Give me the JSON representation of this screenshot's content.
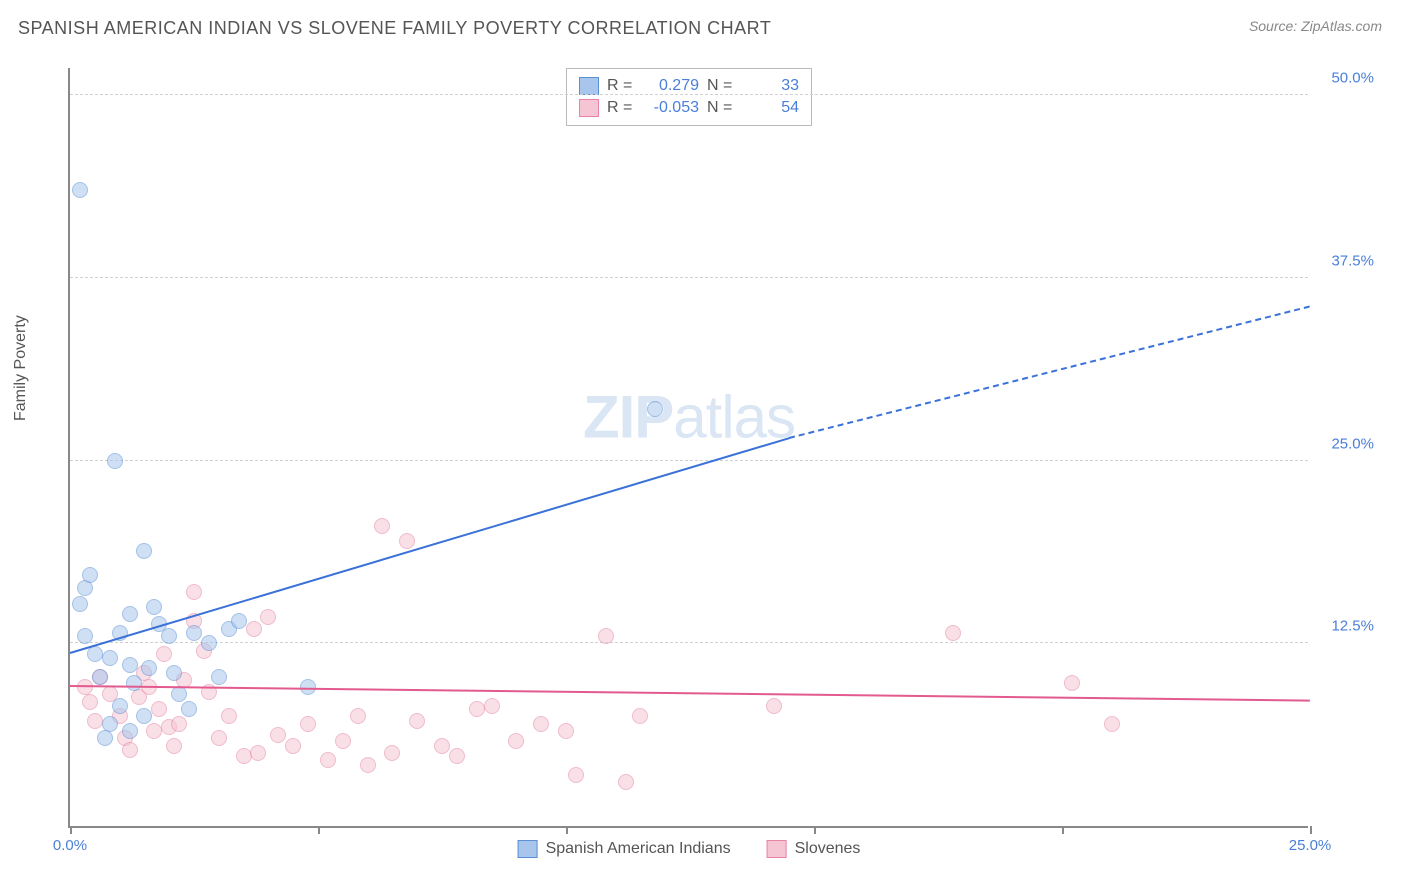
{
  "title": "SPANISH AMERICAN INDIAN VS SLOVENE FAMILY POVERTY CORRELATION CHART",
  "source": "Source: ZipAtlas.com",
  "ylabel": "Family Poverty",
  "watermark_bold": "ZIP",
  "watermark_light": "atlas",
  "chart": {
    "type": "scatter",
    "xlim": [
      0,
      25
    ],
    "ylim": [
      0,
      52
    ],
    "x_ticks": [
      0,
      5,
      10,
      15,
      20,
      25
    ],
    "x_tick_labels": {
      "0": "0.0%",
      "25": "25.0%"
    },
    "y_gridlines": [
      12.5,
      25.0,
      37.5,
      50.0
    ],
    "y_tick_labels": [
      "12.5%",
      "25.0%",
      "37.5%",
      "50.0%"
    ],
    "grid_color": "#d0d0d0",
    "axis_color": "#888888",
    "marker_radius": 8,
    "marker_opacity": 0.55,
    "series": [
      {
        "name": "Spanish American Indians",
        "color_fill": "#a8c6ec",
        "color_stroke": "#5b8fd6",
        "R": "0.279",
        "N": "33",
        "points": [
          [
            0.2,
            43.5
          ],
          [
            0.9,
            25.0
          ],
          [
            0.3,
            16.3
          ],
          [
            0.4,
            17.2
          ],
          [
            0.2,
            15.2
          ],
          [
            0.5,
            11.8
          ],
          [
            0.6,
            10.2
          ],
          [
            0.8,
            11.5
          ],
          [
            1.0,
            13.2
          ],
          [
            1.2,
            14.5
          ],
          [
            1.5,
            18.8
          ],
          [
            1.7,
            15.0
          ],
          [
            1.2,
            11.0
          ],
          [
            1.3,
            9.8
          ],
          [
            1.5,
            7.5
          ],
          [
            1.0,
            8.2
          ],
          [
            0.8,
            7.0
          ],
          [
            0.7,
            6.0
          ],
          [
            1.2,
            6.5
          ],
          [
            1.6,
            10.8
          ],
          [
            1.8,
            13.8
          ],
          [
            2.0,
            13.0
          ],
          [
            2.1,
            10.5
          ],
          [
            2.2,
            9.0
          ],
          [
            2.4,
            8.0
          ],
          [
            2.5,
            13.2
          ],
          [
            2.8,
            12.5
          ],
          [
            3.0,
            10.2
          ],
          [
            3.2,
            13.5
          ],
          [
            3.4,
            14.0
          ],
          [
            4.8,
            9.5
          ],
          [
            11.8,
            28.5
          ],
          [
            0.3,
            13.0
          ]
        ],
        "trend": {
          "x1": 0,
          "y1": 11.8,
          "x2_solid": 14.5,
          "y2_solid": 26.5,
          "x2_dash": 25,
          "y2_dash": 35.5,
          "color": "#3a72d8"
        }
      },
      {
        "name": "Slovenes",
        "color_fill": "#f5c5d3",
        "color_stroke": "#e584a5",
        "R": "-0.053",
        "N": "54",
        "points": [
          [
            0.3,
            9.5
          ],
          [
            0.4,
            8.5
          ],
          [
            0.5,
            7.2
          ],
          [
            0.6,
            10.2
          ],
          [
            0.8,
            9.0
          ],
          [
            1.0,
            7.5
          ],
          [
            1.1,
            6.0
          ],
          [
            1.2,
            5.2
          ],
          [
            1.4,
            8.8
          ],
          [
            1.5,
            10.5
          ],
          [
            1.7,
            6.5
          ],
          [
            1.8,
            8.0
          ],
          [
            1.9,
            11.8
          ],
          [
            2.0,
            6.8
          ],
          [
            2.1,
            5.5
          ],
          [
            2.2,
            7.0
          ],
          [
            2.3,
            10.0
          ],
          [
            2.5,
            16.0
          ],
          [
            2.5,
            14.0
          ],
          [
            2.8,
            9.2
          ],
          [
            3.0,
            6.0
          ],
          [
            3.2,
            7.5
          ],
          [
            3.5,
            4.8
          ],
          [
            3.7,
            13.5
          ],
          [
            3.8,
            5.0
          ],
          [
            4.0,
            14.3
          ],
          [
            4.2,
            6.2
          ],
          [
            4.5,
            5.5
          ],
          [
            4.8,
            7.0
          ],
          [
            5.2,
            4.5
          ],
          [
            5.5,
            5.8
          ],
          [
            5.8,
            7.5
          ],
          [
            6.0,
            4.2
          ],
          [
            6.3,
            20.5
          ],
          [
            6.5,
            5.0
          ],
          [
            6.8,
            19.5
          ],
          [
            7.0,
            7.2
          ],
          [
            7.5,
            5.5
          ],
          [
            7.8,
            4.8
          ],
          [
            8.2,
            8.0
          ],
          [
            8.5,
            8.2
          ],
          [
            9.0,
            5.8
          ],
          [
            9.5,
            7.0
          ],
          [
            10.0,
            6.5
          ],
          [
            10.2,
            3.5
          ],
          [
            10.8,
            13.0
          ],
          [
            11.2,
            3.0
          ],
          [
            11.5,
            7.5
          ],
          [
            14.2,
            8.2
          ],
          [
            17.8,
            13.2
          ],
          [
            20.2,
            9.8
          ],
          [
            21.0,
            7.0
          ],
          [
            1.6,
            9.5
          ],
          [
            2.7,
            12.0
          ]
        ],
        "trend": {
          "x1": 0,
          "y1": 9.5,
          "x2_solid": 25,
          "y2_solid": 8.5,
          "color": "#e35a8e"
        }
      }
    ],
    "stats_label_R": "R =",
    "stats_label_N": "N ="
  }
}
